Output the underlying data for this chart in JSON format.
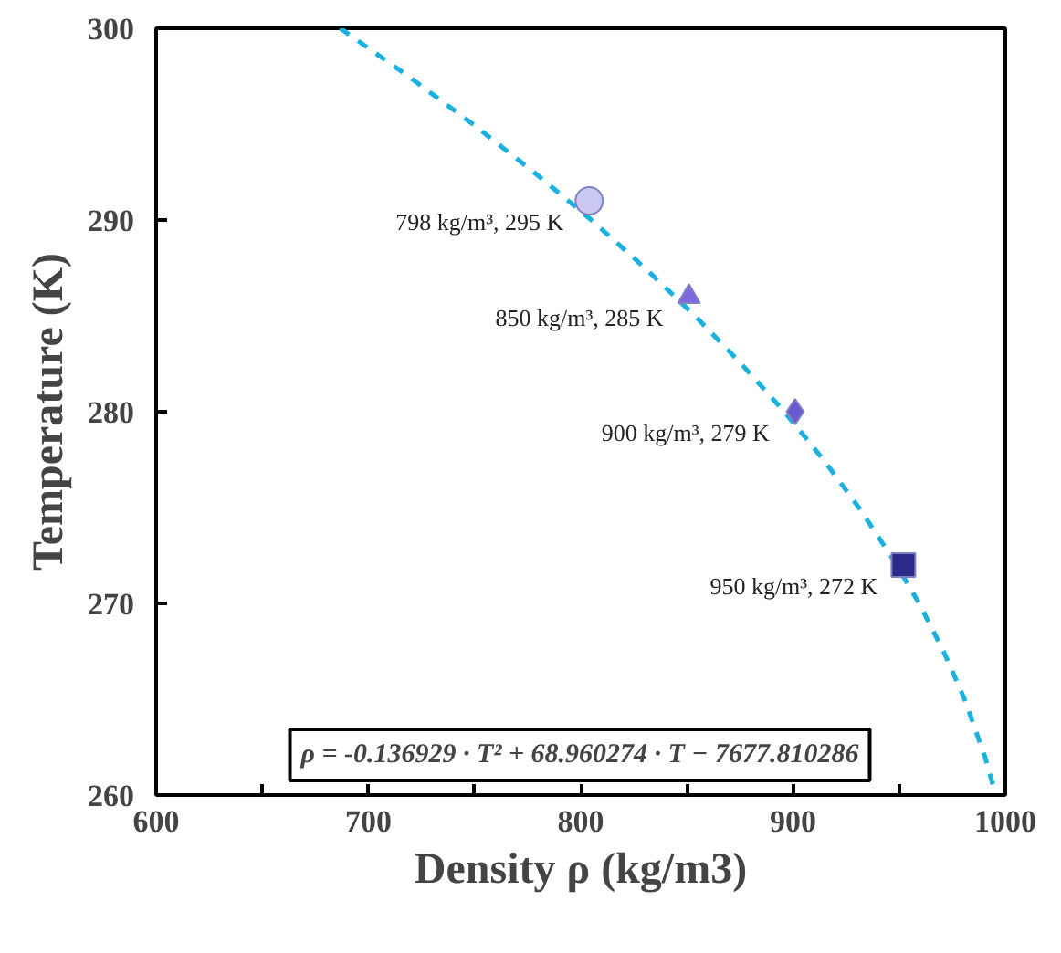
{
  "chart_data": {
    "type": "scatter",
    "xlabel": "Density ρ (kg/m3)",
    "ylabel": "Temperature (K)",
    "xlim": [
      600,
      1000
    ],
    "ylim": [
      260,
      300
    ],
    "xticks": [
      600,
      {
        "value": 650,
        "label": null
      },
      700,
      {
        "value": 750,
        "label": null
      },
      800,
      {
        "value": 850,
        "label": null
      },
      900,
      {
        "value": 950,
        "label": null
      },
      1000
    ],
    "yticks": [
      260,
      270,
      280,
      290,
      300
    ],
    "grid": false,
    "series": [
      {
        "type": "line",
        "line_style": "dashed",
        "marker": "none",
        "color": "#1ab0e0",
        "x": [
          686.7,
          718.8,
          749.2,
          777.9,
          805.0,
          830.2,
          853.8,
          875.6,
          895.9,
          914.3,
          931.0,
          946.0,
          959.4,
          970.9,
          980.8,
          990.4,
          995.5
        ],
        "values": [
          300,
          297.5,
          295,
          292.5,
          290,
          287.5,
          285,
          282.5,
          280,
          277.5,
          275,
          272.5,
          270,
          267.5,
          265,
          262,
          260
        ]
      },
      {
        "marker": "circle",
        "color": "#c8c8f0",
        "x": [
          804
        ],
        "values": [
          291
        ]
      },
      {
        "marker": "triangle",
        "color": "#7b68dd",
        "x": [
          851
        ],
        "values": [
          286
        ]
      },
      {
        "marker": "diamond",
        "color": "#6a5acd",
        "x": [
          901
        ],
        "values": [
          280
        ]
      },
      {
        "marker": "square",
        "color": "#2a2a8a",
        "x": [
          952
        ],
        "values": [
          272
        ]
      }
    ],
    "annotations": [
      {
        "text": "798 kg/m³, 295 K",
        "x": 804,
        "y": 291
      },
      {
        "text": "850 kg/m³, 285 K",
        "x": 851,
        "y": 286
      },
      {
        "text": "900 kg/m³, 279 K",
        "x": 901,
        "y": 280
      },
      {
        "text": "950 kg/m³, 272 K",
        "x": 952,
        "y": 272
      },
      "ρ = -0.136929 · T² + 68.960274 · T − 7677.810286"
    ]
  }
}
